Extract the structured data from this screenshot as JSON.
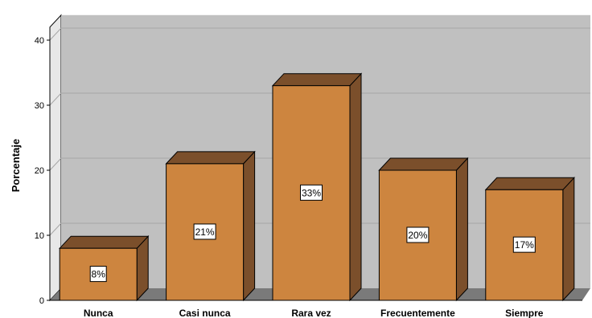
{
  "chart_data": {
    "type": "bar",
    "ylabel": "Porcentaje",
    "xlabel": "",
    "categories": [
      "Nunca",
      "Casi nunca",
      "Rara vez",
      "Frecuentemente",
      "Siempre"
    ],
    "values": [
      8,
      21,
      33,
      20,
      17
    ],
    "data_labels": [
      "8%",
      "21%",
      "33%",
      "20%",
      "17%"
    ],
    "ylim": [
      0,
      42
    ],
    "yticks": [
      0,
      10,
      20,
      30,
      40
    ],
    "grid": true,
    "three_d": true,
    "colors": {
      "bar_front": "#cd853f",
      "bar_top": "#7b4f2b",
      "bar_side": "#7b4f2b",
      "plot_back": "#c0c0c0",
      "plot_floor": "#7a7a7a",
      "plot_wall": "#e8e8e8",
      "gridline": "#a6a6a6"
    }
  }
}
